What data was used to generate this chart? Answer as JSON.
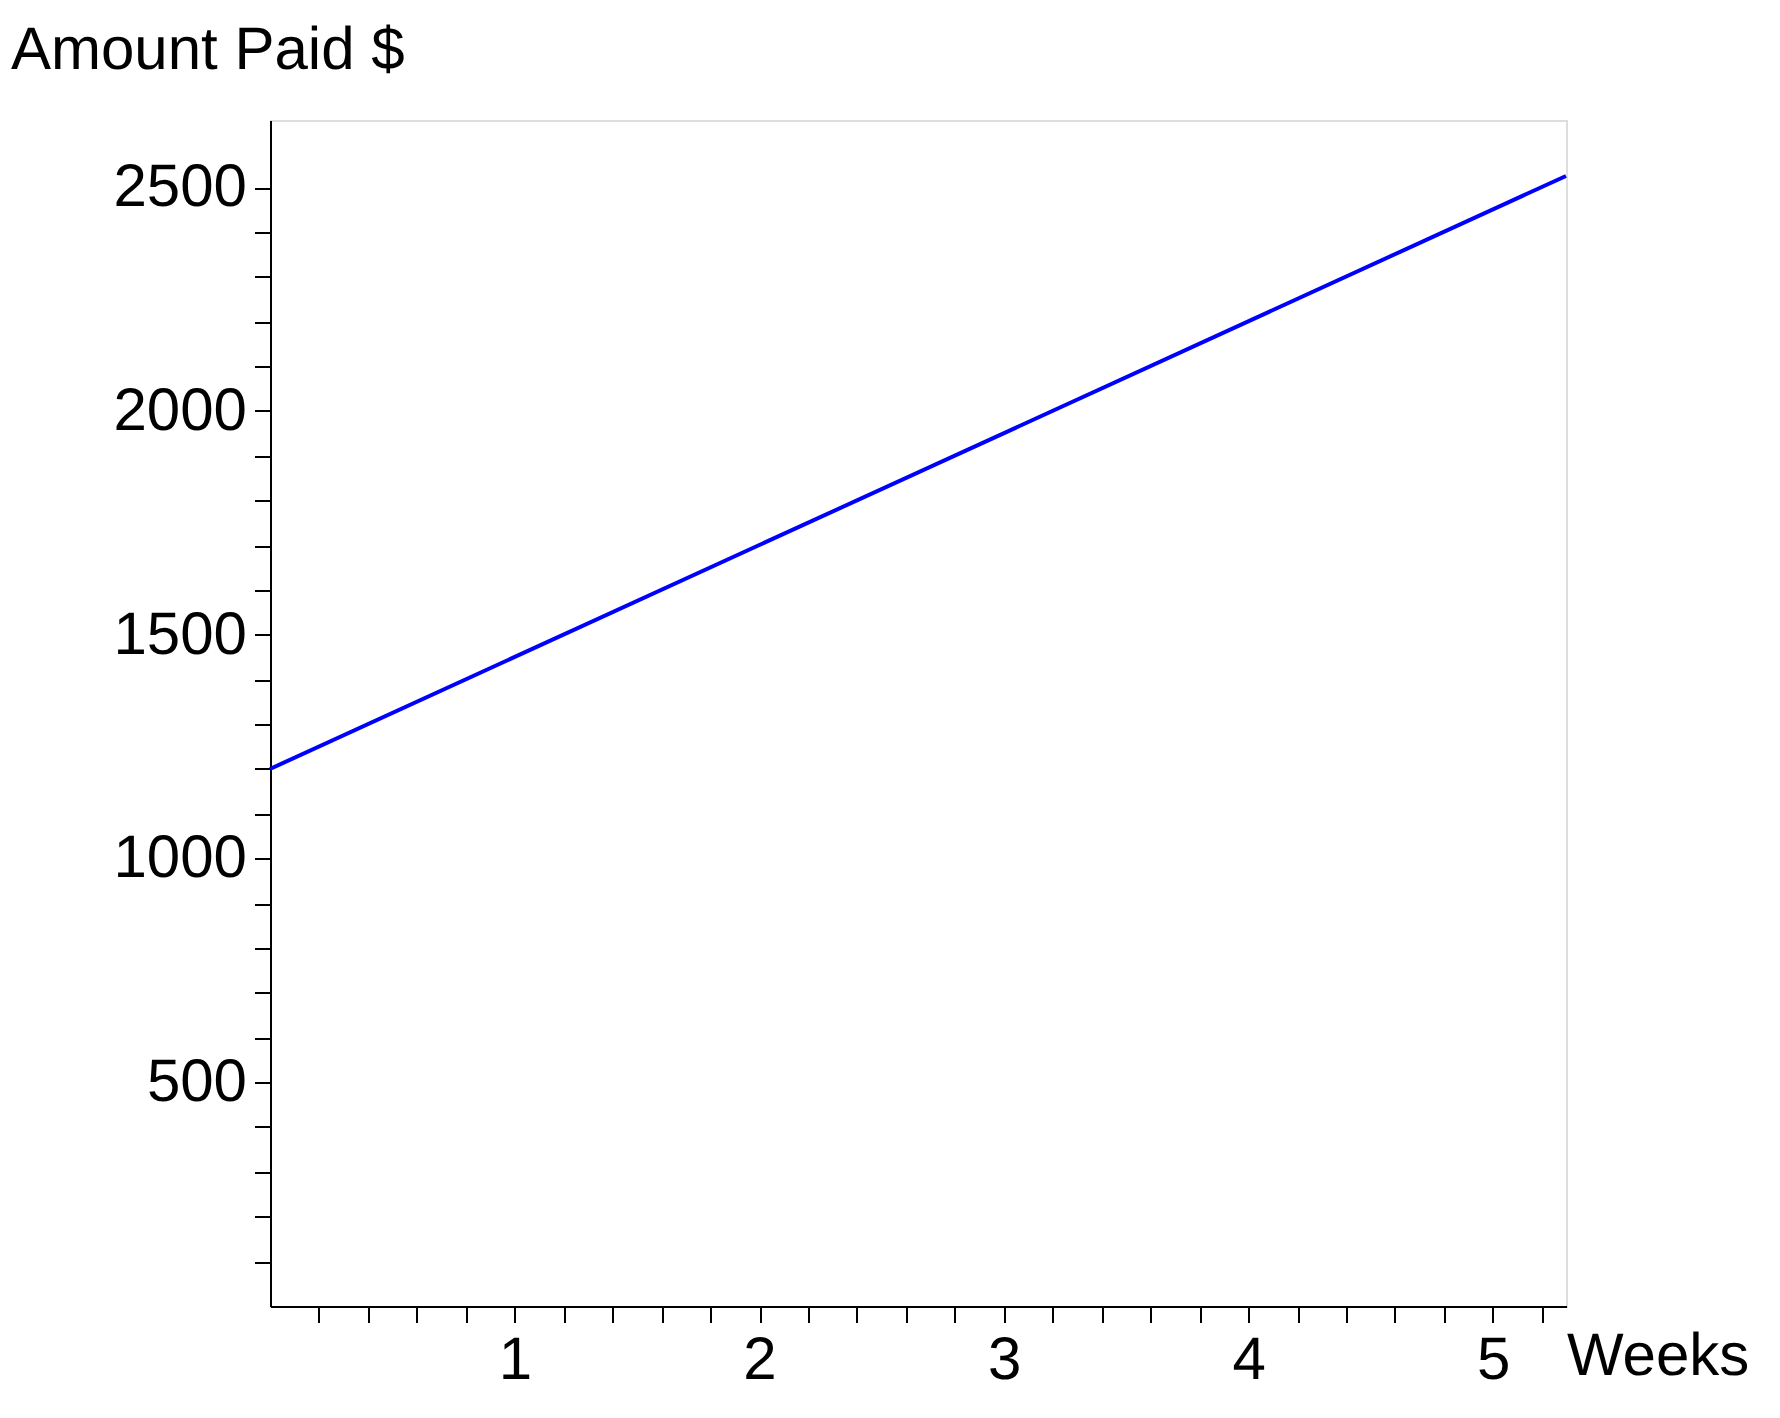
{
  "chart_data": {
    "type": "line",
    "xlabel": "Weeks",
    "ylabel": "Amount Paid $",
    "x": [
      0,
      5.3
    ],
    "series": [
      {
        "color": "#0000ff",
        "values": [
          1200,
          2525
        ]
      }
    ],
    "xlim": [
      0,
      5.3
    ],
    "ylim": [
      0,
      2650
    ],
    "xticks": [
      {
        "value": 0.2,
        "label": null
      },
      {
        "value": 0.4,
        "label": null
      },
      {
        "value": 0.6,
        "label": null
      },
      {
        "value": 0.8,
        "label": null
      },
      1,
      {
        "value": 1.2,
        "label": null
      },
      {
        "value": 1.4,
        "label": null
      },
      {
        "value": 1.6,
        "label": null
      },
      {
        "value": 1.8,
        "label": null
      },
      2,
      {
        "value": 2.2,
        "label": null
      },
      {
        "value": 2.4,
        "label": null
      },
      {
        "value": 2.6,
        "label": null
      },
      {
        "value": 2.8,
        "label": null
      },
      3,
      {
        "value": 3.2,
        "label": null
      },
      {
        "value": 3.4,
        "label": null
      },
      {
        "value": 3.6,
        "label": null
      },
      {
        "value": 3.8,
        "label": null
      },
      4,
      {
        "value": 4.2,
        "label": null
      },
      {
        "value": 4.4,
        "label": null
      },
      {
        "value": 4.6,
        "label": null
      },
      {
        "value": 4.8,
        "label": null
      },
      5,
      {
        "value": 5.2,
        "label": null
      }
    ],
    "yticks": [
      {
        "value": 100,
        "label": null
      },
      {
        "value": 200,
        "label": null
      },
      {
        "value": 300,
        "label": null
      },
      {
        "value": 400,
        "label": null
      },
      500,
      {
        "value": 600,
        "label": null
      },
      {
        "value": 700,
        "label": null
      },
      {
        "value": 800,
        "label": null
      },
      {
        "value": 900,
        "label": null
      },
      1000,
      {
        "value": 1100,
        "label": null
      },
      {
        "value": 1200,
        "label": null
      },
      {
        "value": 1300,
        "label": null
      },
      {
        "value": 1400,
        "label": null
      },
      1500,
      {
        "value": 1600,
        "label": null
      },
      {
        "value": 1700,
        "label": null
      },
      {
        "value": 1800,
        "label": null
      },
      {
        "value": 1900,
        "label": null
      },
      2000,
      {
        "value": 2100,
        "label": null
      },
      {
        "value": 2200,
        "label": null
      },
      {
        "value": 2300,
        "label": null
      },
      {
        "value": 2400,
        "label": null
      },
      2500
    ],
    "grid": false,
    "marker": "none",
    "line_style": "solid"
  }
}
